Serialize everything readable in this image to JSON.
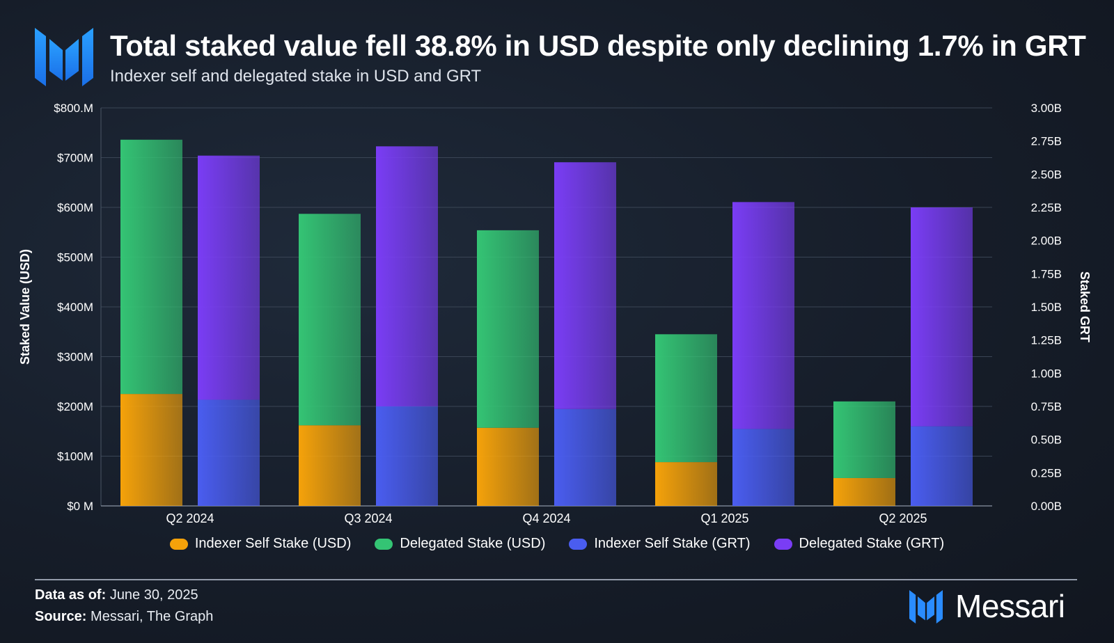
{
  "header": {
    "title": "Total staked value fell 38.8% in USD despite only declining 1.7% in GRT",
    "subtitle": "Indexer self and delegated stake in USD and GRT"
  },
  "logo_icon": "messari-m-logo-icon",
  "chart_data": {
    "type": "bar",
    "layout": "stacked-grouped-dual-axis",
    "categories": [
      "Q2 2024",
      "Q3 2024",
      "Q4 2024",
      "Q1 2025",
      "Q2 2025"
    ],
    "left_axis": {
      "label": "Staked Value (USD)",
      "range": [
        0,
        800
      ],
      "unit": "$M",
      "ticks": [
        "$0 M",
        "$100M",
        "$200M",
        "$300M",
        "$400M",
        "$500M",
        "$600M",
        "$700M",
        "$800.M"
      ]
    },
    "right_axis": {
      "label": "Staked GRT",
      "range": [
        0,
        3.0
      ],
      "unit": "B GRT",
      "ticks": [
        "0.00B",
        "0.25B",
        "0.50B",
        "0.75B",
        "1.00B",
        "1.25B",
        "1.50B",
        "1.75B",
        "2.00B",
        "2.25B",
        "2.50B",
        "2.75B",
        "3.00B"
      ]
    },
    "series": [
      {
        "name": "Indexer Self Stake (USD)",
        "axis": "left",
        "stack": "usd",
        "color": "#f5a20a",
        "values": [
          225,
          162,
          157,
          88,
          56
        ]
      },
      {
        "name": "Delegated Stake (USD)",
        "axis": "left",
        "stack": "usd",
        "color": "#34c474",
        "values": [
          511,
          425,
          397,
          257,
          154
        ]
      },
      {
        "name": "Indexer Self Stake (GRT)",
        "axis": "right",
        "stack": "grt",
        "color": "#4a5df0",
        "values": [
          0.8,
          0.75,
          0.73,
          0.58,
          0.6
        ]
      },
      {
        "name": "Delegated Stake (GRT)",
        "axis": "right",
        "stack": "grt",
        "color": "#7a3df5",
        "values": [
          1.84,
          1.96,
          1.86,
          1.71,
          1.65
        ]
      }
    ],
    "legend_position": "bottom",
    "grid": true
  },
  "footer": {
    "date_label": "Data as of:",
    "date_value": "June 30, 2025",
    "source_label": "Source:",
    "source_value": "Messari, The Graph"
  },
  "brand": {
    "name": "Messari"
  }
}
